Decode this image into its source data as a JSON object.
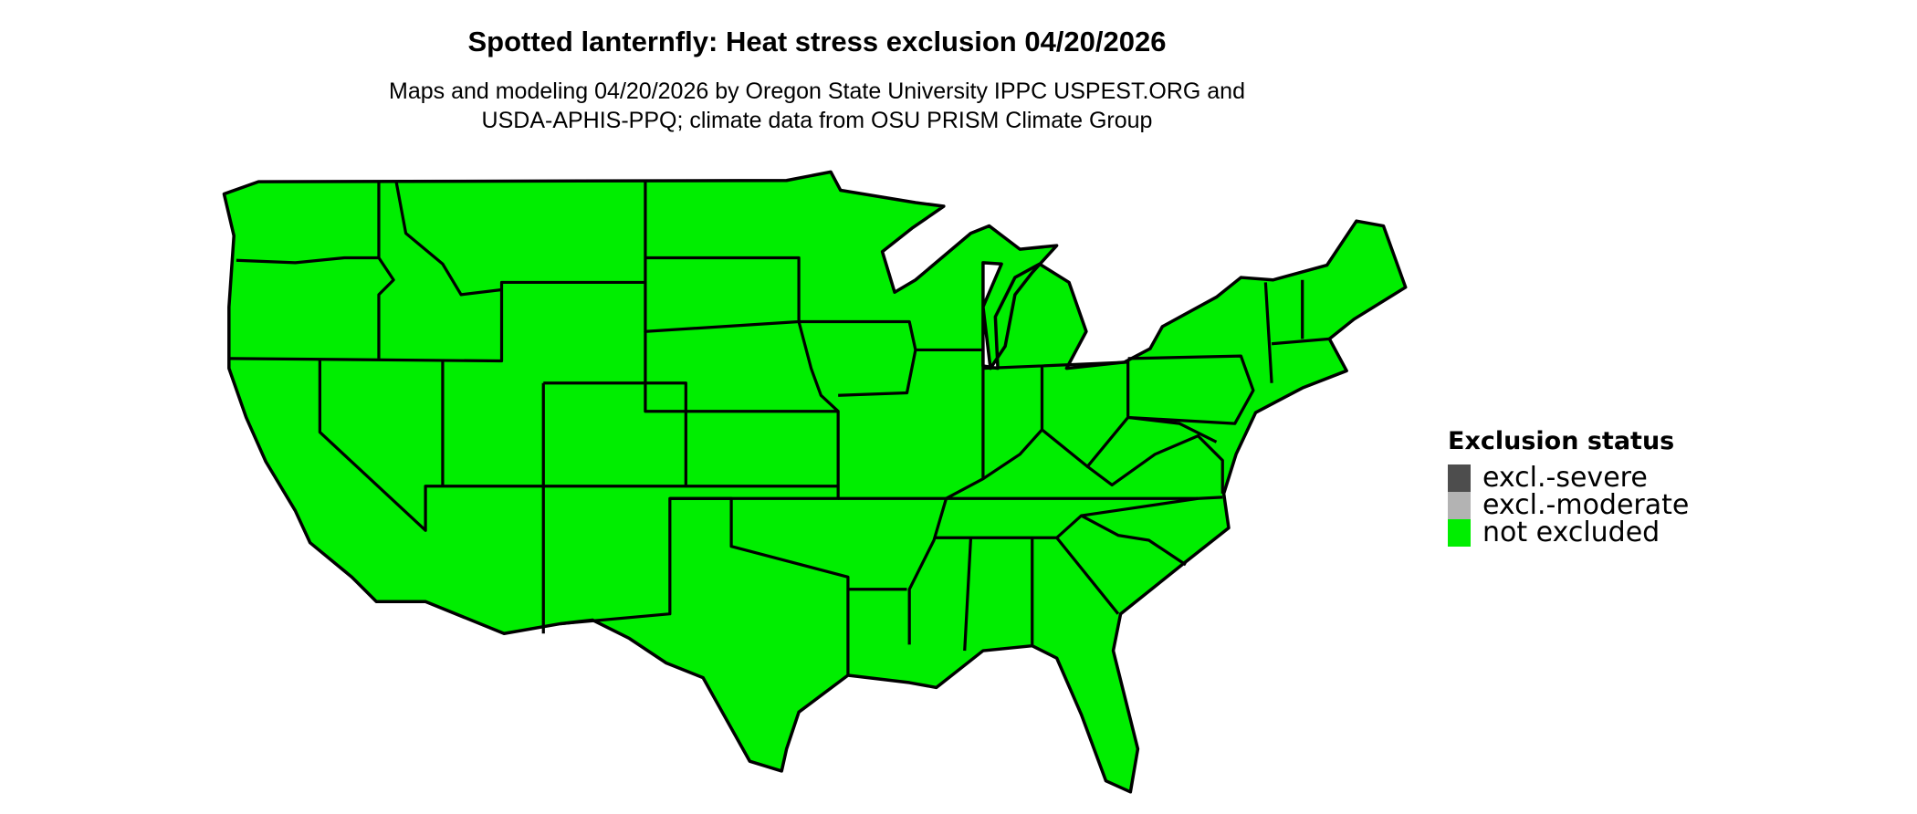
{
  "title": "Spotted lanternfly: Heat stress exclusion 04/20/2026",
  "subtitle_lines": [
    "Maps and modeling 04/20/2026 by Oregon State University IPPC USPEST.ORG and",
    "USDA-APHIS-PPQ; climate data from OSU PRISM Climate Group"
  ],
  "map": {
    "region": "Contiguous United States",
    "fill_status": "not excluded",
    "border_color": "#000000"
  },
  "legend": {
    "title": "Exclusion status",
    "items": [
      {
        "label": "excl.-severe",
        "color": "#4d4d4d"
      },
      {
        "label": "excl.-moderate",
        "color": "#b3b3b3"
      },
      {
        "label": "not excluded",
        "color": "#00ee00"
      }
    ]
  }
}
